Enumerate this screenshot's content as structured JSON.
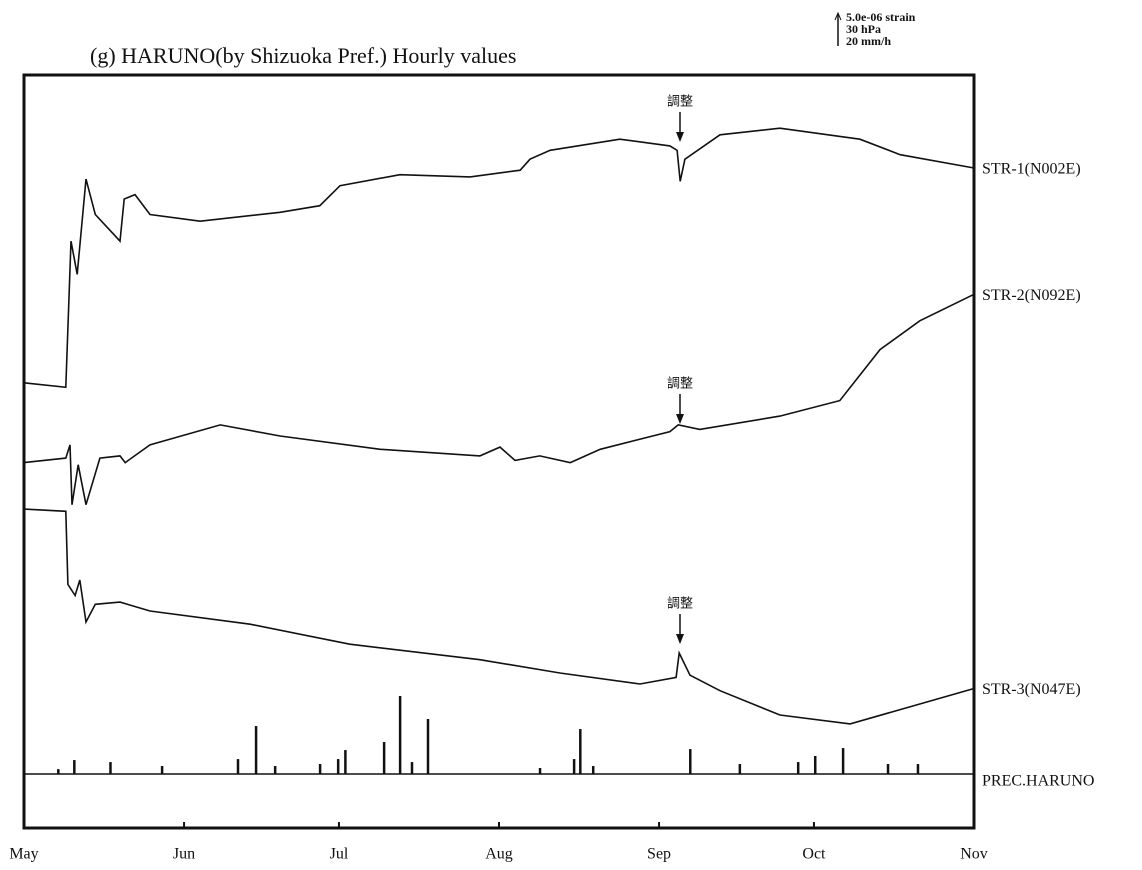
{
  "chart_data": {
    "type": "line",
    "title": "(g) HARUNO(by Shizuoka Pref.) Hourly values",
    "scale_labels": [
      "5.0e-06 strain",
      "30 hPa",
      "20 mm/h"
    ],
    "xlim": [
      0,
      184
    ],
    "xticks": [
      {
        "value": 0,
        "label": "May"
      },
      {
        "value": 31,
        "label": "Jun"
      },
      {
        "value": 61,
        "label": "Jul"
      },
      {
        "value": 92,
        "label": "Aug"
      },
      {
        "value": 123,
        "label": "Sep"
      },
      {
        "value": 153,
        "label": "Oct"
      },
      {
        "value": 184,
        "label": "Nov"
      }
    ],
    "ylim": [
      0,
      34
    ],
    "y2lim": [
      -49,
      635
    ],
    "series": [
      {
        "name": "STR-1(N002E)",
        "color": "#111",
        "x": [
          0,
          8.1,
          9.1,
          10.3,
          12.0,
          13.8,
          18.6,
          19.4,
          21.5,
          24.4,
          34.1,
          49.6,
          57.3,
          61.2,
          72.8,
          86.4,
          96.1,
          98.0,
          101.9,
          115.4,
          125.1,
          126.5,
          127.1,
          128.0,
          134.8,
          146.4,
          161.9,
          169.7,
          184
        ],
        "values": [
          20.1,
          19.9,
          26.5,
          25.0,
          29.3,
          27.7,
          26.5,
          28.4,
          28.6,
          27.7,
          27.4,
          27.8,
          28.1,
          29.0,
          29.5,
          29.4,
          29.7,
          30.2,
          30.6,
          31.1,
          30.8,
          30.6,
          29.2,
          30.2,
          31.3,
          31.6,
          31.1,
          30.4,
          29.8
        ]
      },
      {
        "name": "STR-2(N092E)",
        "color": "#111",
        "x": [
          0,
          8.1,
          8.9,
          9.3,
          10.5,
          12.0,
          14.7,
          18.6,
          19.6,
          24.4,
          38.0,
          49.6,
          69.0,
          88.3,
          92.2,
          95.1,
          99.9,
          105.8,
          111.6,
          125.1,
          126.7,
          130.9,
          146.4,
          158.0,
          165.8,
          173.5,
          184
        ],
        "values": [
          16.5,
          16.7,
          17.3,
          14.6,
          16.4,
          14.6,
          16.7,
          16.8,
          16.5,
          17.3,
          18.2,
          17.7,
          17.1,
          16.8,
          17.2,
          16.6,
          16.8,
          16.5,
          17.1,
          17.9,
          18.2,
          18.0,
          18.6,
          19.3,
          21.6,
          22.9,
          24.1
        ]
      },
      {
        "name": "STR-3(N047E)",
        "color": "#111",
        "x": [
          0,
          8.1,
          8.5,
          9.9,
          10.8,
          12.0,
          13.8,
          18.6,
          24.4,
          43.8,
          63.1,
          88.3,
          103.8,
          119.3,
          126.3,
          126.9,
          129.0,
          134.8,
          146.4,
          160.0,
          184
        ],
        "values": [
          14.4,
          14.3,
          11.0,
          10.5,
          11.2,
          9.3,
          10.1,
          10.2,
          9.8,
          9.2,
          8.3,
          7.6,
          7.0,
          6.5,
          6.8,
          7.9,
          6.9,
          6.2,
          5.1,
          4.7,
          6.3
        ]
      },
      {
        "name": "PREC.HARUNO",
        "color": "#111",
        "axis": "y2",
        "chart": "bar",
        "x": [
          6.6,
          9.7,
          16.7,
          26.7,
          41.4,
          44.9,
          48.6,
          57.3,
          60.8,
          62.2,
          69.7,
          72.8,
          75.1,
          78.2,
          99.9,
          106.5,
          107.7,
          110.2,
          129.0,
          138.6,
          149.9,
          153.2,
          158.6,
          167.3,
          173.1
        ],
        "values": [
          4.5,
          12.7,
          10.9,
          7.3,
          13.6,
          43.6,
          7.3,
          9.1,
          13.6,
          21.8,
          29.1,
          70.9,
          10.9,
          50.0,
          5.5,
          13.6,
          40.9,
          7.3,
          22.7,
          9.1,
          10.9,
          16.4,
          23.6,
          9.1,
          9.1
        ]
      }
    ],
    "annotations": [
      "調整",
      "調整",
      "調整"
    ]
  }
}
